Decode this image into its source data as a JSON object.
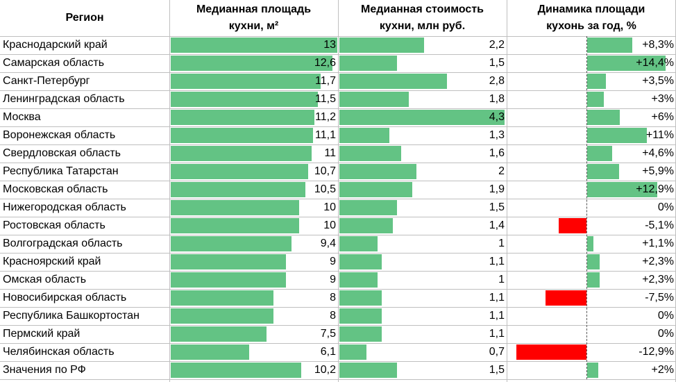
{
  "headers": {
    "region": "Регион",
    "area": "Медианная площадь\nкухни, м²",
    "cost": "Медианная стоимость\nкухни, млн руб.",
    "dynamics": "Динамика площади\nкухонь за год, %"
  },
  "chart_data": {
    "type": "table",
    "columns": [
      "Регион",
      "Медианная площадь кухни, м²",
      "Медианная стоимость кухни, млн руб.",
      "Динамика площади кухонь за год, %"
    ],
    "rows": [
      {
        "region": "Краснодарский край",
        "area": 13,
        "area_text": "13",
        "cost": 2.2,
        "cost_text": "2,2",
        "dyn": 8.3,
        "dyn_text": "+8,3%"
      },
      {
        "region": "Самарская область",
        "area": 12.6,
        "area_text": "12,6",
        "cost": 1.5,
        "cost_text": "1,5",
        "dyn": 14.4,
        "dyn_text": "+14,4%"
      },
      {
        "region": "Санкт-Петербург",
        "area": 11.7,
        "area_text": "11,7",
        "cost": 2.8,
        "cost_text": "2,8",
        "dyn": 3.5,
        "dyn_text": "+3,5%"
      },
      {
        "region": "Ленинградская область",
        "area": 11.5,
        "area_text": "11,5",
        "cost": 1.8,
        "cost_text": "1,8",
        "dyn": 3,
        "dyn_text": "+3%"
      },
      {
        "region": "Москва",
        "area": 11.2,
        "area_text": "11,2",
        "cost": 4.3,
        "cost_text": "4,3",
        "dyn": 6,
        "dyn_text": "+6%"
      },
      {
        "region": "Воронежская область",
        "area": 11.1,
        "area_text": "11,1",
        "cost": 1.3,
        "cost_text": "1,3",
        "dyn": 11,
        "dyn_text": "+11%"
      },
      {
        "region": "Свердловская область",
        "area": 11,
        "area_text": "11",
        "cost": 1.6,
        "cost_text": "1,6",
        "dyn": 4.6,
        "dyn_text": "+4,6%"
      },
      {
        "region": "Республика Татарстан",
        "area": 10.7,
        "area_text": "10,7",
        "cost": 2,
        "cost_text": "2",
        "dyn": 5.9,
        "dyn_text": "+5,9%"
      },
      {
        "region": "Московская область",
        "area": 10.5,
        "area_text": "10,5",
        "cost": 1.9,
        "cost_text": "1,9",
        "dyn": 12.9,
        "dyn_text": "+12,9%"
      },
      {
        "region": "Нижегородская область",
        "area": 10,
        "area_text": "10",
        "cost": 1.5,
        "cost_text": "1,5",
        "dyn": 0,
        "dyn_text": "0%"
      },
      {
        "region": "Ростовская область",
        "area": 10,
        "area_text": "10",
        "cost": 1.4,
        "cost_text": "1,4",
        "dyn": -5.1,
        "dyn_text": "-5,1%"
      },
      {
        "region": "Волгоградская область",
        "area": 9.4,
        "area_text": "9,4",
        "cost": 1,
        "cost_text": "1",
        "dyn": 1.1,
        "dyn_text": "+1,1%"
      },
      {
        "region": "Красноярский край",
        "area": 9,
        "area_text": "9",
        "cost": 1.1,
        "cost_text": "1,1",
        "dyn": 2.3,
        "dyn_text": "+2,3%"
      },
      {
        "region": "Омская область",
        "area": 9,
        "area_text": "9",
        "cost": 1,
        "cost_text": "1",
        "dyn": 2.3,
        "dyn_text": "+2,3%"
      },
      {
        "region": "Новосибирская область",
        "area": 8,
        "area_text": "8",
        "cost": 1.1,
        "cost_text": "1,1",
        "dyn": -7.5,
        "dyn_text": "-7,5%"
      },
      {
        "region": "Республика Башкортостан",
        "area": 8,
        "area_text": "8",
        "cost": 1.1,
        "cost_text": "1,1",
        "dyn": 0,
        "dyn_text": "0%"
      },
      {
        "region": "Пермский край",
        "area": 7.5,
        "area_text": "7,5",
        "cost": 1.1,
        "cost_text": "1,1",
        "dyn": 0,
        "dyn_text": "0%"
      },
      {
        "region": "Челябинская область",
        "area": 6.1,
        "area_text": "6,1",
        "cost": 0.7,
        "cost_text": "0,7",
        "dyn": -12.9,
        "dyn_text": "-12,9%"
      },
      {
        "region": "Значения по РФ",
        "area": 10.2,
        "area_text": "10,2",
        "cost": 1.5,
        "cost_text": "1,5",
        "dyn": 2,
        "dyn_text": "+2%"
      }
    ],
    "colors": {
      "positive": "#63c384",
      "negative": "#ff0000"
    }
  }
}
